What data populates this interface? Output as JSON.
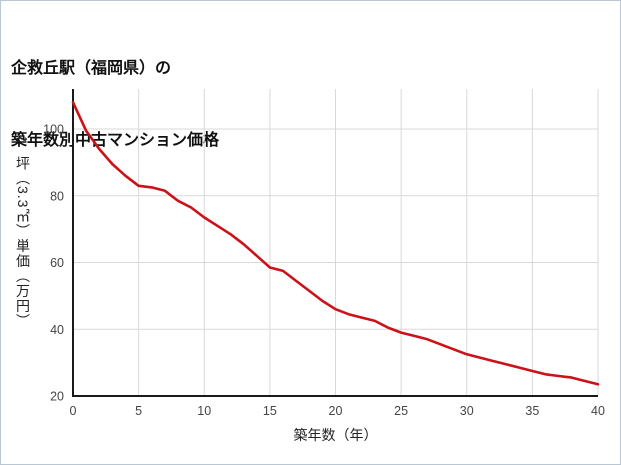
{
  "title": {
    "line1": "企救丘駅（福岡県）の",
    "line2": "築年数別中古マンション価格"
  },
  "chart_data": {
    "type": "line",
    "title": "企救丘駅（福岡県）の築年数別中古マンション価格",
    "xlabel": "築年数（年）",
    "ylabel": "坪（3.3㎡）単価（万円）",
    "x": [
      0,
      1,
      2,
      3,
      4,
      5,
      6,
      7,
      8,
      9,
      10,
      11,
      12,
      13,
      14,
      15,
      16,
      17,
      18,
      19,
      20,
      21,
      22,
      23,
      24,
      25,
      26,
      27,
      28,
      29,
      30,
      31,
      32,
      33,
      34,
      35,
      36,
      37,
      38,
      39,
      40
    ],
    "values": [
      108,
      99.5,
      94,
      89.5,
      86,
      83,
      82.5,
      81.5,
      78.5,
      76.5,
      73.5,
      71,
      68.5,
      65.5,
      62,
      58.5,
      57.5,
      54.5,
      51.5,
      48.5,
      46,
      44.5,
      43.5,
      42.5,
      40.5,
      39,
      38,
      37,
      35.5,
      34,
      32.5,
      31.5,
      30.5,
      29.5,
      28.5,
      27.5,
      26.5,
      26,
      25.5,
      24.5,
      23.5
    ],
    "xlim": [
      0,
      40
    ],
    "ylim": [
      20,
      112
    ],
    "xticks": [
      0,
      5,
      10,
      15,
      20,
      25,
      30,
      35,
      40
    ],
    "yticks": [
      20,
      40,
      60,
      80,
      100
    ],
    "grid": true,
    "legend_position": "none",
    "line_color": "#cc1218",
    "grid_color": "#d9d9d9",
    "axis_color": "#1a1a1a",
    "tick_color": "#444444"
  },
  "page": {
    "background": "#ffffff",
    "border_color": "#b9c7d4"
  }
}
